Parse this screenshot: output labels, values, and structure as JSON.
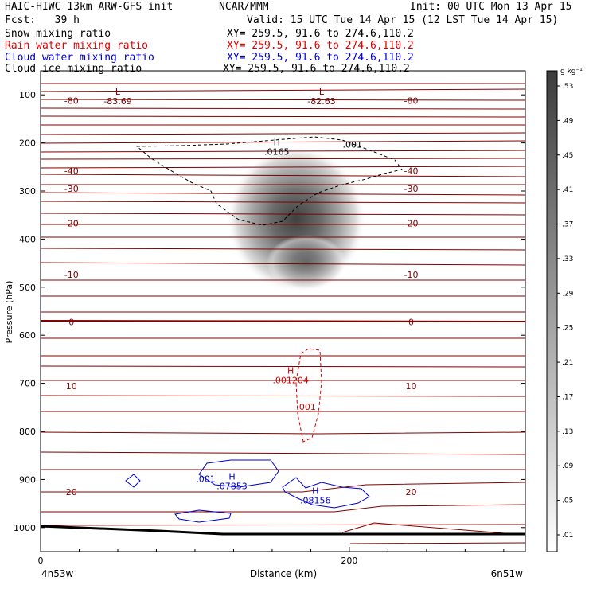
{
  "header": {
    "model": "HAIC-HIWC 13km ARW-GFS init",
    "center": "NCAR/MMM",
    "init": "Init: 00 UTC Mon 13 Apr 15",
    "fcst": "Fcst:   39 h",
    "valid": "Valid: 15 UTC Tue 14 Apr 15 (12 LST Tue 14 Apr 15)"
  },
  "fields": [
    {
      "label": "Snow mixing ratio",
      "xy": "XY= 259.5, 91.6 to 274.6,110.2",
      "color": "#000000"
    },
    {
      "label": "Rain water mixing ratio",
      "xy": "XY= 259.5, 91.6 to 274.6,110.2",
      "color": "#e00000"
    },
    {
      "label": "Cloud water mixing ratio",
      "xy": "XY= 259.5, 91.6 to 274.6,110.2",
      "color": "#0000cc"
    },
    {
      "label": "Cloud ice mixing ratio",
      "xy": "XY= 259.5, 91.6 to 274.6,110.2",
      "color": "#000000"
    }
  ],
  "chart_data": {
    "type": "heatmap",
    "xlabel": "Distance (km)",
    "ylabel": "Pressure (hPa)",
    "xlim": [
      0,
      314
    ],
    "ylim": [
      1050,
      50
    ],
    "x_ticks": [
      "0",
      "200"
    ],
    "y_ticks": [
      "100",
      "200",
      "300",
      "400",
      "500",
      "600",
      "700",
      "800",
      "900",
      "1000"
    ],
    "endpoints": {
      "left": "4n53w",
      "right": "6n51w"
    },
    "colorbar": {
      "unit": "g kg⁻¹",
      "ticks": [
        ".01",
        ".05",
        ".09",
        ".13",
        ".17",
        ".21",
        ".25",
        ".29",
        ".33",
        ".37",
        ".41",
        ".45",
        ".49",
        ".53"
      ]
    },
    "snow_max": {
      "x": 160,
      "p": 330,
      "value": 0.53
    },
    "temperature_contours": [
      {
        "label": "-80",
        "p": 112
      },
      {
        "label": "-40",
        "p": 258
      },
      {
        "label": "-30",
        "p": 295
      },
      {
        "label": "-20",
        "p": 367
      },
      {
        "label": "-10",
        "p": 474
      },
      {
        "label": "0",
        "p": 572
      },
      {
        "label": "10",
        "p": 706
      },
      {
        "label": "20",
        "p": 926
      }
    ],
    "extrema_labels": [
      {
        "type": "L",
        "value": "-83.69",
        "x": 50,
        "p": 100,
        "color": "#800000"
      },
      {
        "type": "L",
        "value": "-82.63",
        "x": 182,
        "p": 100,
        "color": "#800000"
      },
      {
        "type": "H",
        "value": ".0165",
        "x": 153,
        "p": 205,
        "color": "#000000"
      },
      {
        "type": "H",
        "value": ".001204",
        "x": 162,
        "p": 680,
        "color": "#e00000"
      },
      {
        "type": "H",
        "value": ".07853",
        "x": 124,
        "p": 900,
        "color": "#0000cc"
      },
      {
        "type": "H",
        "value": ".08156",
        "x": 178,
        "p": 930,
        "color": "#0000cc"
      }
    ],
    "contour_value_labels": [
      {
        "text": ".001",
        "x": 202,
        "p": 210,
        "color": "#000000"
      },
      {
        "text": ".001",
        "x": 172,
        "p": 755,
        "color": "#e00000"
      },
      {
        "text": ".001",
        "x": 107,
        "p": 905,
        "color": "#0000cc"
      }
    ]
  }
}
